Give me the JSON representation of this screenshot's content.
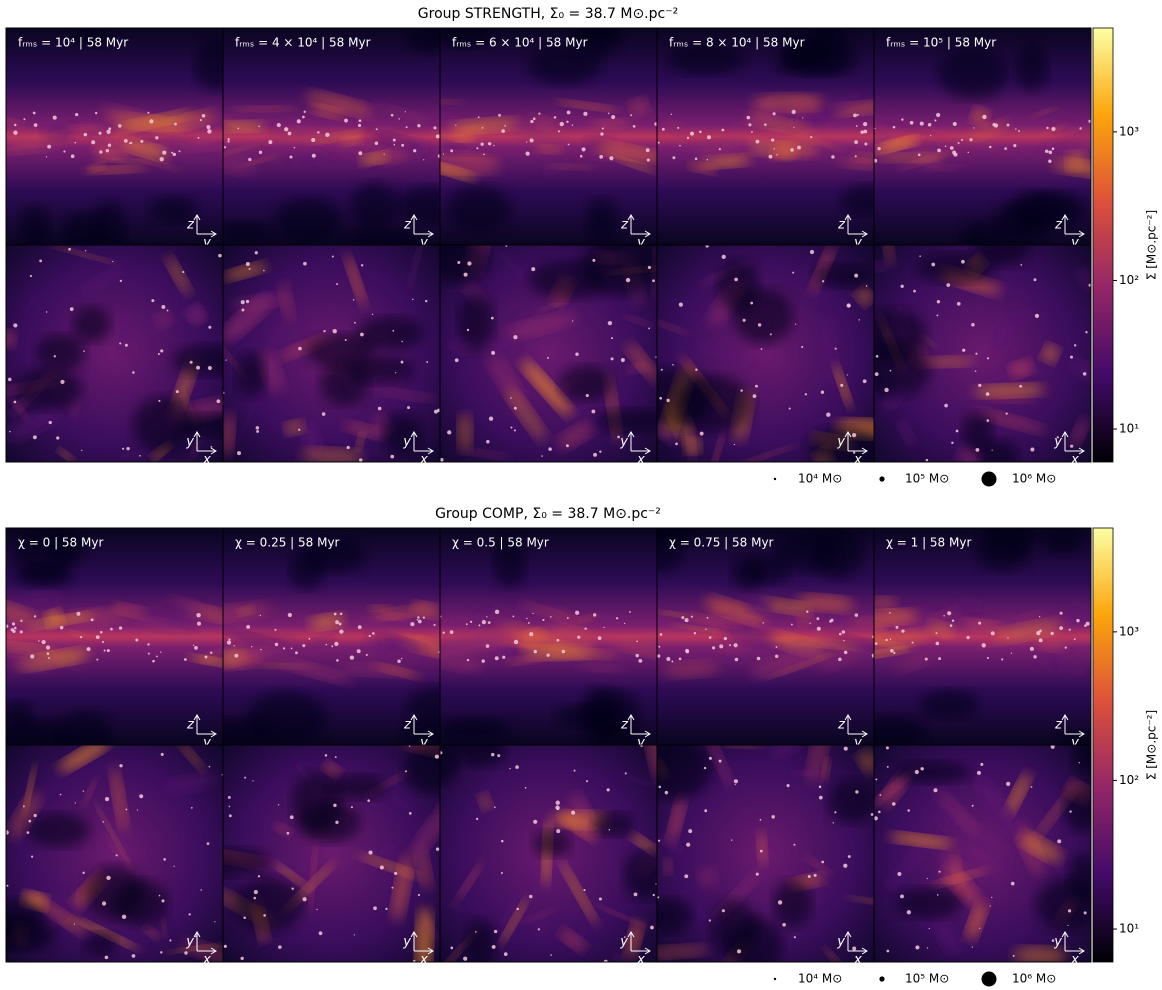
{
  "groups": [
    {
      "title": "Group STRENGTH, Σ₀ = 38.7 M⊙.pc⁻²",
      "panels": [
        "fᵣₘₛ = 10⁴ | 58 Myr",
        "fᵣₘₛ = 4 × 10⁴ | 58 Myr",
        "fᵣₘₛ = 6 × 10⁴ | 58 Myr",
        "fᵣₘₛ = 8 × 10⁴ | 58 Myr",
        "fᵣₘₛ = 10⁵ | 58 Myr"
      ],
      "projections": [
        {
          "up": "z",
          "right": "y"
        },
        {
          "up": "y",
          "right": "x"
        }
      ],
      "colorbar": {
        "label": "Σ [M⊙.pc⁻²]",
        "log": true,
        "lim": [
          6,
          5000
        ],
        "ticks": [
          {
            "value": 10,
            "label": "10¹"
          },
          {
            "value": 100,
            "label": "10²"
          },
          {
            "value": 1000,
            "label": "10³"
          }
        ],
        "colormap": [
          "#000004",
          "#420a68",
          "#932667",
          "#dd513a",
          "#fca50a",
          "#fcffa4"
        ]
      },
      "legend": [
        "10⁴ M⊙",
        "10⁵ M⊙",
        "10⁶ M⊙"
      ]
    },
    {
      "title": "Group COMP, Σ₀ = 38.7 M⊙.pc⁻²",
      "panels": [
        "χ = 0 | 58 Myr",
        "χ = 0.25 | 58 Myr",
        "χ = 0.5 | 58 Myr",
        "χ = 0.75 | 58 Myr",
        "χ = 1 | 58 Myr"
      ],
      "projections": [
        {
          "up": "z",
          "right": "y"
        },
        {
          "up": "y",
          "right": "x"
        }
      ],
      "colorbar": {
        "label": "Σ [M⊙.pc⁻²]",
        "log": true,
        "lim": [
          6,
          5000
        ],
        "ticks": [
          {
            "value": 10,
            "label": "10¹"
          },
          {
            "value": 100,
            "label": "10²"
          },
          {
            "value": 1000,
            "label": "10³"
          }
        ],
        "colormap": [
          "#000004",
          "#420a68",
          "#932667",
          "#dd513a",
          "#fca50a",
          "#fcffa4"
        ]
      },
      "legend": [
        "10⁴ M⊙",
        "10⁵ M⊙",
        "10⁶ M⊙"
      ]
    }
  ]
}
